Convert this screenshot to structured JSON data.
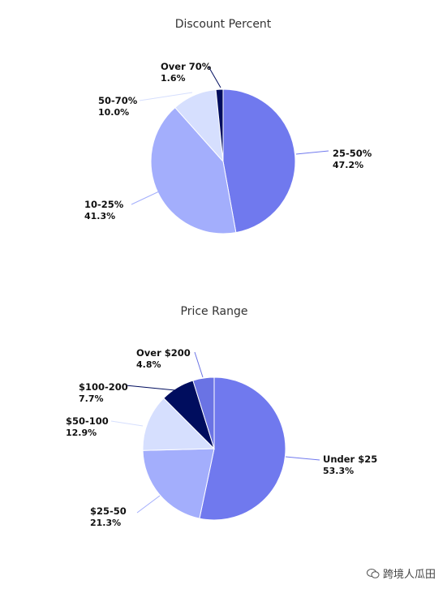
{
  "chart_data": [
    {
      "type": "pie",
      "title": "Discount Percent",
      "slices": [
        {
          "label": "25-50%",
          "value": 47.2,
          "pct_label": "47.2%",
          "color": "#7079ee",
          "label_side": "right"
        },
        {
          "label": "10-25%",
          "value": 41.3,
          "pct_label": "41.3%",
          "color": "#a3aefc",
          "label_side": "left"
        },
        {
          "label": "50-70%",
          "value": 10.0,
          "pct_label": "10.0%",
          "color": "#d6dffe",
          "label_side": "left"
        },
        {
          "label": "Over 70%",
          "value": 1.6,
          "pct_label": "1.6%",
          "color": "#000d5e",
          "label_side": "left"
        }
      ]
    },
    {
      "type": "pie",
      "title": "Price Range",
      "slices": [
        {
          "label": "Under $25",
          "value": 53.3,
          "pct_label": "53.3%",
          "color": "#7079ee",
          "label_side": "right"
        },
        {
          "label": "$25-50",
          "value": 21.3,
          "pct_label": "21.3%",
          "color": "#a3aefc",
          "label_side": "left"
        },
        {
          "label": "$50-100",
          "value": 12.9,
          "pct_label": "12.9%",
          "color": "#d6dffe",
          "label_side": "left"
        },
        {
          "label": "$100-200",
          "value": 7.7,
          "pct_label": "7.7%",
          "color": "#000d5e",
          "label_side": "left"
        },
        {
          "label": "Over $200",
          "value": 4.8,
          "pct_label": "4.8%",
          "color": "#6a73e4",
          "label_side": "left"
        }
      ]
    }
  ],
  "watermark": {
    "text": "跨境人瓜田",
    "icon": "wechat-icon"
  }
}
